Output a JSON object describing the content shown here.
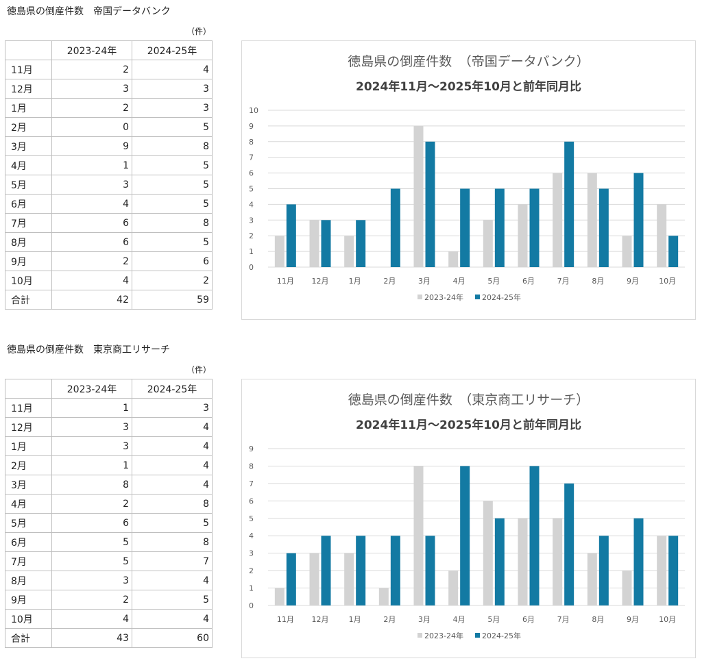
{
  "sections": [
    {
      "heading": "徳島県の倒産件数　帝国データバンク",
      "unit": "（件）",
      "table": {
        "headers": [
          "",
          "2023-24年",
          "2024-25年"
        ],
        "rows": [
          [
            "11月",
            "2",
            "4"
          ],
          [
            "12月",
            "3",
            "3"
          ],
          [
            "1月",
            "2",
            "3"
          ],
          [
            "2月",
            "0",
            "5"
          ],
          [
            "3月",
            "9",
            "8"
          ],
          [
            "4月",
            "1",
            "5"
          ],
          [
            "5月",
            "3",
            "5"
          ],
          [
            "6月",
            "4",
            "5"
          ],
          [
            "7月",
            "6",
            "8"
          ],
          [
            "8月",
            "6",
            "5"
          ],
          [
            "9月",
            "2",
            "6"
          ],
          [
            "10月",
            "4",
            "2"
          ],
          [
            "合計",
            "42",
            "59"
          ]
        ]
      }
    },
    {
      "heading": "徳島県の倒産件数　東京商工リサーチ",
      "unit": "（件）",
      "table": {
        "headers": [
          "",
          "2023-24年",
          "2024-25年"
        ],
        "rows": [
          [
            "11月",
            "1",
            "3"
          ],
          [
            "12月",
            "3",
            "4"
          ],
          [
            "1月",
            "3",
            "4"
          ],
          [
            "2月",
            "1",
            "4"
          ],
          [
            "3月",
            "8",
            "4"
          ],
          [
            "4月",
            "2",
            "8"
          ],
          [
            "5月",
            "6",
            "5"
          ],
          [
            "6月",
            "5",
            "8"
          ],
          [
            "7月",
            "5",
            "7"
          ],
          [
            "8月",
            "3",
            "4"
          ],
          [
            "9月",
            "2",
            "5"
          ],
          [
            "10月",
            "4",
            "4"
          ],
          [
            "合計",
            "43",
            "60"
          ]
        ]
      }
    }
  ],
  "colors": {
    "series_prev": "#d3d3d3",
    "series_curr": "#137aa3",
    "grid": "#d9d9d9",
    "title": "#595959",
    "subtitle": "#404040"
  },
  "chart_data": [
    {
      "type": "bar",
      "title": "徳島県の倒産件数　（帝国データバンク）",
      "subtitle": "2024年11月～2025年10月と前年同月比",
      "categories": [
        "11月",
        "12月",
        "1月",
        "2月",
        "3月",
        "4月",
        "5月",
        "6月",
        "7月",
        "8月",
        "9月",
        "10月"
      ],
      "series": [
        {
          "name": "2023-24年",
          "values": [
            2,
            3,
            2,
            0,
            9,
            1,
            3,
            4,
            6,
            6,
            2,
            4
          ]
        },
        {
          "name": "2024-25年",
          "values": [
            4,
            3,
            3,
            5,
            8,
            5,
            5,
            5,
            8,
            5,
            6,
            2
          ]
        }
      ],
      "ylim": [
        0,
        10
      ],
      "yticks": [
        0,
        1,
        2,
        3,
        4,
        5,
        6,
        7,
        8,
        9,
        10
      ],
      "grid": true,
      "legend": "bottom"
    },
    {
      "type": "bar",
      "title": "徳島県の倒産件数　（東京商工リサーチ）",
      "subtitle": "2024年11月～2025年10月と前年同月比",
      "categories": [
        "11月",
        "12月",
        "1月",
        "2月",
        "3月",
        "4月",
        "5月",
        "6月",
        "7月",
        "8月",
        "9月",
        "10月"
      ],
      "series": [
        {
          "name": "2023-24年",
          "values": [
            1,
            3,
            3,
            1,
            8,
            2,
            6,
            5,
            5,
            3,
            2,
            4
          ]
        },
        {
          "name": "2024-25年",
          "values": [
            3,
            4,
            4,
            4,
            4,
            8,
            5,
            8,
            7,
            4,
            5,
            4
          ]
        }
      ],
      "ylim": [
        0,
        9
      ],
      "yticks": [
        0,
        1,
        2,
        3,
        4,
        5,
        6,
        7,
        8,
        9
      ],
      "grid": true,
      "legend": "bottom"
    }
  ]
}
